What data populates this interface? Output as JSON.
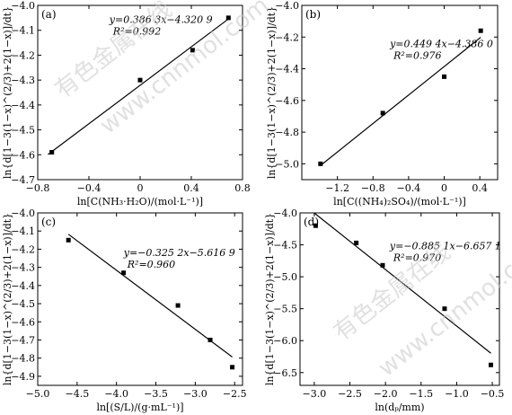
{
  "watermark": [
    "有色金属在线",
    "www.cnnmol.com",
    "有色金属在线",
    "www.cnnmol.com"
  ],
  "chart_data": [
    {
      "type": "scatter",
      "panel": "(a)",
      "xlabel": "ln[C(NH₃·H₂O)/(mol·L⁻¹)]",
      "ylabel": "ln{d[1−3(1−x)^(2/3)+2(1−x)]/dt}",
      "xlim": [
        -0.8,
        0.8
      ],
      "ylim": [
        -4.7,
        -4.0
      ],
      "xticks": [
        -0.8,
        -0.4,
        0,
        0.4,
        0.8
      ],
      "xticklabels": [
        "−0.8",
        "−0.4",
        "0",
        "0.4",
        "0.8"
      ],
      "yticks": [
        -4.7,
        -4.6,
        -4.5,
        -4.4,
        -4.3,
        -4.2,
        -4.1,
        -4.0
      ],
      "yticklabels": [
        "−4.7",
        "−4.6",
        "−4.5",
        "−4.4",
        "−4.3",
        "−4.2",
        "−4.1",
        "−4.0"
      ],
      "x": [
        -0.69,
        0.0,
        0.41,
        0.69
      ],
      "y": [
        -4.59,
        -4.3,
        -4.18,
        -4.05
      ],
      "fit": {
        "slope": 0.3863,
        "intercept": -4.3209,
        "x_range": [
          -0.72,
          0.69
        ]
      },
      "equation": "y=0.386 3x−4.320 9",
      "r2": "R²=0.992"
    },
    {
      "type": "scatter",
      "panel": "(b)",
      "xlabel": "ln[C((NH₄)₂SO₄)/(mol·L⁻¹)]",
      "ylabel": "ln{d[1−3(1−x)^(2/3)+2(1−x)]/dt}",
      "xlim": [
        -1.6,
        0.6
      ],
      "ylim": [
        -5.1,
        -4.0
      ],
      "xticks": [
        -1.2,
        -0.8,
        -0.4,
        0,
        0.4
      ],
      "xticklabels": [
        "−1.2",
        "−0.8",
        "−0.4",
        "0",
        "0.4"
      ],
      "yticks": [
        -5.0,
        -4.8,
        -4.6,
        -4.4,
        -4.2,
        -4.0
      ],
      "yticklabels": [
        "−5.0",
        "−4.8",
        "−4.6",
        "−4.4",
        "−4.2",
        "−4.0"
      ],
      "x": [
        -1.39,
        -0.69,
        0.0,
        0.41
      ],
      "y": [
        -5.0,
        -4.68,
        -4.45,
        -4.16
      ],
      "fit": {
        "slope": 0.4494,
        "intercept": -4.386,
        "x_range": [
          -1.39,
          0.41
        ]
      },
      "equation": "y=0.449 4x−4.386 0",
      "r2": "R²=0.976"
    },
    {
      "type": "scatter",
      "panel": "(c)",
      "xlabel": "ln[(S/L)/(g·mL⁻¹)]",
      "ylabel": "ln{d[1−3(1−x)^(2/3)+2(1−x)]/dt}",
      "xlim": [
        -5.0,
        -2.4
      ],
      "ylim": [
        -4.95,
        -4.0
      ],
      "xticks": [
        -5.0,
        -4.5,
        -4.0,
        -3.5,
        -3.0,
        -2.5
      ],
      "xticklabels": [
        "−5.0",
        "−4.5",
        "−4.0",
        "−3.5",
        "−3.0",
        "−2.5"
      ],
      "yticks": [
        -4.9,
        -4.8,
        -4.7,
        -4.6,
        -4.5,
        -4.4,
        -4.3,
        -4.2,
        -4.1,
        -4.0
      ],
      "yticklabels": [
        "−4.9",
        "−4.8",
        "−4.7",
        "−4.6",
        "−4.5",
        "−4.4",
        "−4.3",
        "−4.2",
        "−4.1",
        "−4.0"
      ],
      "x": [
        -4.61,
        -3.91,
        -3.22,
        -2.81,
        -2.53
      ],
      "y": [
        -4.15,
        -4.33,
        -4.51,
        -4.7,
        -4.85
      ],
      "fit": {
        "slope": -0.3252,
        "intercept": -5.6169,
        "x_range": [
          -4.61,
          -2.53
        ]
      },
      "equation": "y=−0.325 2x−5.616 9",
      "r2": "R²=0.960"
    },
    {
      "type": "scatter",
      "panel": "(d)",
      "xlabel": "ln(dₚ/mm)",
      "ylabel": "ln{d[1−3(1−x)^(2/3)+2(1−x)]/dt}",
      "xlim": [
        -3.2,
        -0.4
      ],
      "ylim": [
        -6.7,
        -4.0
      ],
      "xticks": [
        -3.0,
        -2.5,
        -2.0,
        -1.5,
        -1.0,
        -0.5
      ],
      "xticklabels": [
        "−3.0",
        "−2.5",
        "−2.0",
        "−1.5",
        "−1.0",
        "−0.5"
      ],
      "yticks": [
        -6.5,
        -6.0,
        -5.5,
        -5.0,
        -4.5,
        -4.0
      ],
      "yticklabels": [
        "−6.5",
        "−6.0",
        "−5.5",
        "−5.0",
        "−4.5",
        "−4.0"
      ],
      "x": [
        -2.98,
        -2.41,
        -2.04,
        -1.17,
        -0.52
      ],
      "y": [
        -4.2,
        -4.47,
        -4.82,
        -5.5,
        -6.38
      ],
      "fit": {
        "slope": -0.8851,
        "intercept": -6.6571,
        "x_range": [
          -3.0,
          -0.52
        ]
      },
      "equation": "y=−0.885 1x−6.657 1",
      "r2": "R²=0.970"
    }
  ]
}
